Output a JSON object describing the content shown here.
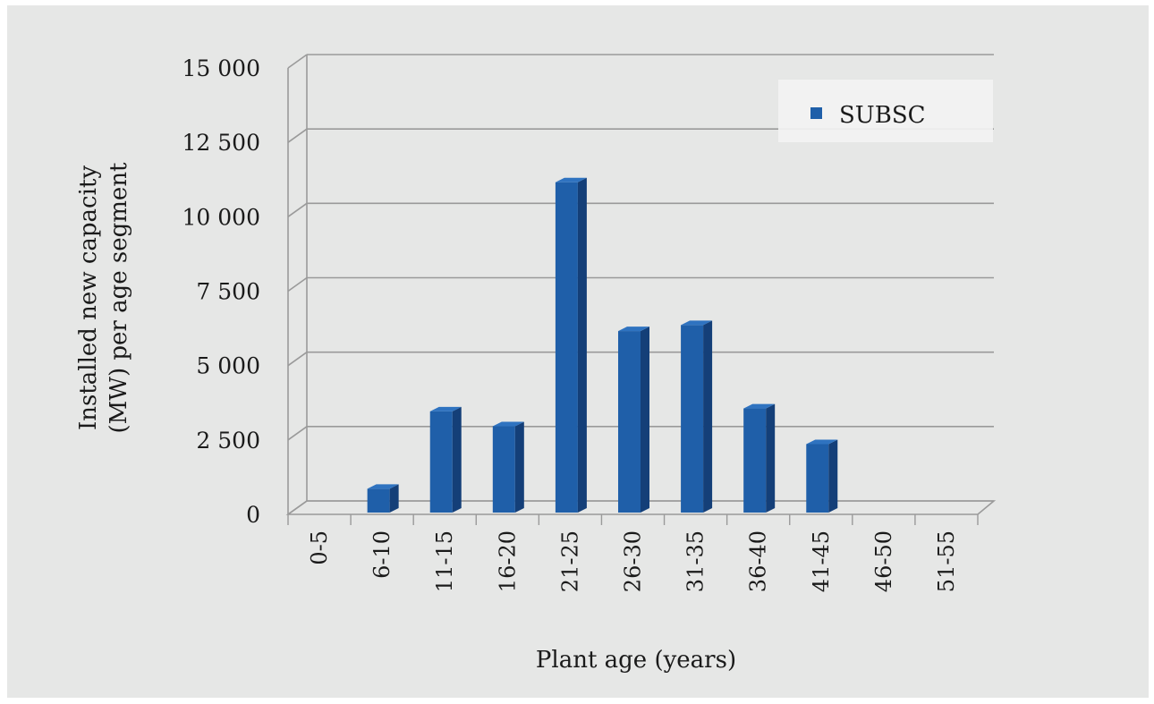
{
  "chart_data": {
    "type": "bar",
    "title": "",
    "xlabel": "Plant age (years)",
    "ylabel_lines": [
      "Installed new capacity",
      "(MW) per age segment"
    ],
    "categories": [
      "0-5",
      "6-10",
      "11-15",
      "16-20",
      "21-25",
      "26-30",
      "31-35",
      "36-40",
      "41-45",
      "46-50",
      "51-55"
    ],
    "series": [
      {
        "name": "SUBSC",
        "values": [
          0,
          800,
          3400,
          2900,
          11100,
          6100,
          6300,
          3500,
          2300,
          0,
          0
        ]
      }
    ],
    "ylim": [
      0,
      15000
    ],
    "yticks": [
      0,
      2500,
      5000,
      7500,
      10000,
      12500,
      15000
    ],
    "ytick_labels": [
      "0",
      "2 500",
      "5 000",
      "7 500",
      "10 000",
      "12 500",
      "15 000"
    ],
    "grid": true,
    "legend_position": "top-right",
    "colors": {
      "bar_front": "#1f5fa9",
      "bar_side": "#143f78",
      "bar_top": "#2f73c0",
      "grid": "#9a9a9a",
      "background": "#e6e7e6"
    }
  }
}
